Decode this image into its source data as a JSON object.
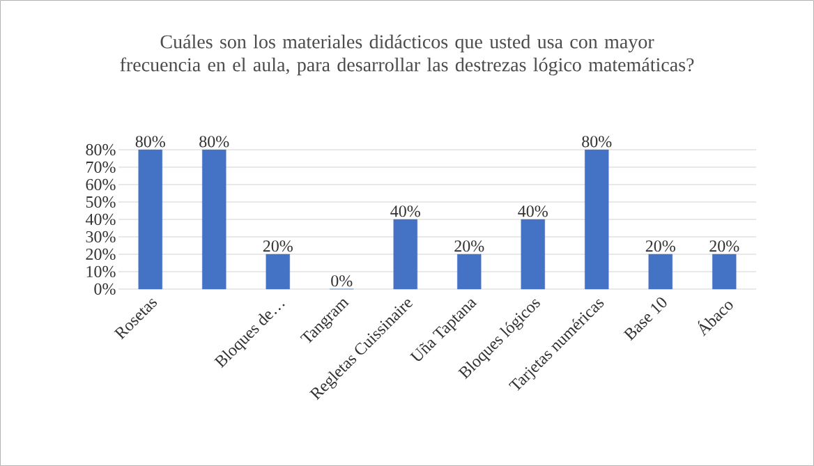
{
  "chart_data": {
    "type": "bar",
    "title": "Cuáles son los materiales didácticos que usted usa con mayor frecuencia en el aula, para desarrollar las destrezas lógico matemáticas?",
    "categories": [
      "Rosetas",
      null,
      "Bloques de…",
      "Tangram",
      "Regletas Cuissinaire",
      "Uña Taptana",
      "Bloques lógicos",
      "Tarjetas numéricas",
      "Base 10",
      "Ábaco"
    ],
    "values": [
      80,
      80,
      20,
      0,
      40,
      20,
      40,
      80,
      20,
      20
    ],
    "value_labels": [
      "80%",
      "80%",
      "20%",
      "0%",
      "40%",
      "20%",
      "40%",
      "80%",
      "20%",
      "20%"
    ],
    "color": "#4472c4",
    "ylim": [
      0,
      80
    ],
    "yticks": [
      {
        "value": 0,
        "label": "0%"
      },
      {
        "value": 10,
        "label": "10%"
      },
      {
        "value": 20,
        "label": "20%"
      },
      {
        "value": 30,
        "label": "30%"
      },
      {
        "value": 40,
        "label": "40%"
      },
      {
        "value": 50,
        "label": "50%"
      },
      {
        "value": 60,
        "label": "60%"
      },
      {
        "value": 70,
        "label": "70%"
      },
      {
        "value": 80,
        "label": "80%"
      }
    ],
    "grid": "y"
  }
}
